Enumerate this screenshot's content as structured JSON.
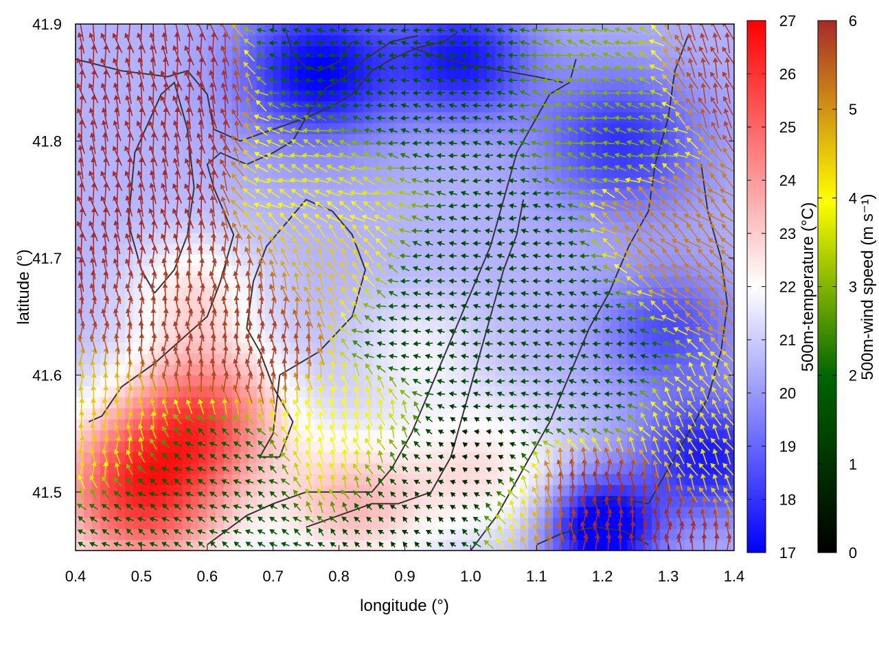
{
  "chart_data": {
    "type": "heatmap",
    "title": "",
    "xlabel": "longitude (°)",
    "ylabel": "latitude (°)",
    "xlim": [
      0.4,
      1.4
    ],
    "ylim": [
      41.45,
      41.9
    ],
    "x_ticks": [
      "0.4",
      "0.5",
      "0.6",
      "0.7",
      "0.8",
      "0.9",
      "1.0",
      "1.1",
      "1.2",
      "1.3",
      "1.4"
    ],
    "y_ticks": [
      "41.5",
      "41.6",
      "41.7",
      "41.8",
      "41.9"
    ],
    "grid": false,
    "legend": "none",
    "colorbars": [
      {
        "label": "500m-temperature (°C)",
        "range": [
          17,
          27
        ],
        "ticks": [
          "17",
          "18",
          "19",
          "20",
          "21",
          "22",
          "23",
          "24",
          "25",
          "26",
          "27"
        ],
        "colors": [
          "#0000ff",
          "#ffffff",
          "#ff0000"
        ]
      },
      {
        "label": "500m-wind speed (m s⁻¹)",
        "range": [
          0,
          6
        ],
        "ticks": [
          "0",
          "1",
          "2",
          "3",
          "4",
          "5",
          "6"
        ],
        "colors": [
          "#000000",
          "#006400",
          "#ffff00",
          "#a52a2a"
        ]
      }
    ],
    "temperature_blobs": [
      {
        "lon": 0.5,
        "lat": 41.5,
        "r": 0.14,
        "amp": 5.5
      },
      {
        "lon": 0.6,
        "lat": 41.57,
        "r": 0.12,
        "amp": 4.0
      },
      {
        "lon": 0.82,
        "lat": 41.49,
        "r": 0.12,
        "amp": 2.8
      },
      {
        "lon": 1.02,
        "lat": 41.52,
        "r": 0.12,
        "amp": 2.0
      },
      {
        "lon": 0.58,
        "lat": 41.67,
        "r": 0.1,
        "amp": 2.0
      },
      {
        "lon": 0.92,
        "lat": 41.62,
        "r": 0.1,
        "amp": 1.2
      },
      {
        "lon": 0.77,
        "lat": 41.86,
        "r": 0.12,
        "amp": -3.5
      },
      {
        "lon": 0.99,
        "lat": 41.87,
        "r": 0.1,
        "amp": -3.0
      },
      {
        "lon": 1.2,
        "lat": 41.47,
        "r": 0.08,
        "amp": -4.5
      },
      {
        "lon": 1.36,
        "lat": 41.53,
        "r": 0.1,
        "amp": -3.0
      },
      {
        "lon": 1.23,
        "lat": 41.8,
        "r": 0.12,
        "amp": -2.5
      },
      {
        "lon": 1.3,
        "lat": 41.64,
        "r": 0.1,
        "amp": -2.0
      }
    ],
    "wind_regions": [
      {
        "lon": 0.46,
        "lat": 41.79,
        "r": 0.1,
        "speed": 6.0,
        "dir_deg": 100
      },
      {
        "lon": 0.62,
        "lat": 41.64,
        "r": 0.09,
        "speed": 5.8,
        "dir_deg": 92
      },
      {
        "lon": 0.46,
        "lat": 41.56,
        "r": 0.06,
        "speed": 4.5,
        "dir_deg": 90
      },
      {
        "lon": 0.59,
        "lat": 41.51,
        "r": 0.08,
        "speed": 1.8,
        "dir_deg": 150
      },
      {
        "lon": 0.79,
        "lat": 41.7,
        "r": 0.07,
        "speed": 4.6,
        "dir_deg": 115
      },
      {
        "lon": 0.8,
        "lat": 41.76,
        "r": 0.08,
        "speed": 3.8,
        "dir_deg": 160
      },
      {
        "lon": 0.92,
        "lat": 41.84,
        "r": 0.1,
        "speed": 1.7,
        "dir_deg": 175
      },
      {
        "lon": 0.99,
        "lat": 41.66,
        "r": 0.1,
        "speed": 1.5,
        "dir_deg": 178
      },
      {
        "lon": 0.94,
        "lat": 41.5,
        "r": 0.08,
        "speed": 1.2,
        "dir_deg": 140
      },
      {
        "lon": 0.82,
        "lat": 41.55,
        "r": 0.07,
        "speed": 4.0,
        "dir_deg": 105
      },
      {
        "lon": 1.0,
        "lat": 41.52,
        "r": 0.06,
        "speed": 0.5,
        "dir_deg": 160
      },
      {
        "lon": 1.14,
        "lat": 41.62,
        "r": 0.1,
        "speed": 1.6,
        "dir_deg": 172
      },
      {
        "lon": 1.2,
        "lat": 41.84,
        "r": 0.08,
        "speed": 3.0,
        "dir_deg": 165
      },
      {
        "lon": 1.34,
        "lat": 41.7,
        "r": 0.08,
        "speed": 5.2,
        "dir_deg": 140
      },
      {
        "lon": 1.37,
        "lat": 41.86,
        "r": 0.06,
        "speed": 5.8,
        "dir_deg": 110
      },
      {
        "lon": 1.34,
        "lat": 41.56,
        "r": 0.06,
        "speed": 4.3,
        "dir_deg": 120
      },
      {
        "lon": 1.17,
        "lat": 41.48,
        "r": 0.08,
        "speed": 6.0,
        "dir_deg": 90
      },
      {
        "lon": 1.08,
        "lat": 41.48,
        "r": 0.05,
        "speed": 4.0,
        "dir_deg": 120
      }
    ],
    "contours": [
      [
        [
          0.4,
          41.87
        ],
        [
          0.47,
          41.86
        ],
        [
          0.54,
          41.855
        ],
        [
          0.57,
          41.86
        ],
        [
          0.6,
          41.84
        ],
        [
          0.61,
          41.81
        ],
        [
          0.65,
          41.8
        ],
        [
          0.7,
          41.81
        ],
        [
          0.75,
          41.82
        ],
        [
          0.79,
          41.83
        ],
        [
          0.82,
          41.84
        ],
        [
          0.85,
          41.86
        ],
        [
          0.88,
          41.87
        ],
        [
          0.92,
          41.88
        ],
        [
          0.96,
          41.885
        ],
        [
          0.98,
          41.893
        ]
      ],
      [
        [
          0.42,
          41.56
        ],
        [
          0.44,
          41.565
        ],
        [
          0.47,
          41.59
        ],
        [
          0.52,
          41.61
        ],
        [
          0.56,
          41.63
        ],
        [
          0.6,
          41.65
        ],
        [
          0.62,
          41.68
        ],
        [
          0.63,
          41.7
        ],
        [
          0.64,
          41.72
        ],
        [
          0.61,
          41.76
        ],
        [
          0.6,
          41.78
        ],
        [
          0.62,
          41.79
        ],
        [
          0.66,
          41.78
        ],
        [
          0.7,
          41.79
        ],
        [
          0.73,
          41.8
        ],
        [
          0.76,
          41.83
        ],
        [
          0.78,
          41.845
        ],
        [
          0.81,
          41.855
        ],
        [
          0.84,
          41.87
        ],
        [
          0.88,
          41.885
        ],
        [
          0.92,
          41.89
        ]
      ],
      [
        [
          0.52,
          41.67
        ],
        [
          0.55,
          41.69
        ],
        [
          0.57,
          41.72
        ],
        [
          0.58,
          41.76
        ],
        [
          0.57,
          41.81
        ],
        [
          0.55,
          41.85
        ],
        [
          0.53,
          41.84
        ],
        [
          0.49,
          41.79
        ],
        [
          0.48,
          41.73
        ],
        [
          0.5,
          41.69
        ],
        [
          0.52,
          41.67
        ]
      ],
      [
        [
          0.71,
          41.6
        ],
        [
          0.77,
          41.62
        ],
        [
          0.82,
          41.65
        ],
        [
          0.84,
          41.69
        ],
        [
          0.82,
          41.72
        ],
        [
          0.79,
          41.74
        ],
        [
          0.75,
          41.75
        ],
        [
          0.72,
          41.73
        ],
        [
          0.69,
          41.71
        ],
        [
          0.67,
          41.68
        ],
        [
          0.66,
          41.64
        ],
        [
          0.68,
          41.62
        ],
        [
          0.7,
          41.59
        ],
        [
          0.73,
          41.56
        ],
        [
          0.71,
          41.53
        ],
        [
          0.68,
          41.53
        ],
        [
          0.7,
          41.55
        ],
        [
          0.71,
          41.6
        ]
      ],
      [
        [
          0.82,
          41.885
        ],
        [
          0.8,
          41.868
        ],
        [
          0.77,
          41.86
        ],
        [
          0.75,
          41.863
        ],
        [
          0.73,
          41.875
        ],
        [
          0.72,
          41.893
        ]
      ],
      [
        [
          0.6,
          41.455
        ],
        [
          0.66,
          41.48
        ],
        [
          0.7,
          41.49
        ],
        [
          0.75,
          41.5
        ],
        [
          0.8,
          41.5
        ],
        [
          0.85,
          41.5
        ],
        [
          0.88,
          41.52
        ],
        [
          0.91,
          41.55
        ],
        [
          0.94,
          41.59
        ],
        [
          0.97,
          41.63
        ],
        [
          1.0,
          41.67
        ],
        [
          1.03,
          41.71
        ],
        [
          1.05,
          41.75
        ],
        [
          1.07,
          41.79
        ],
        [
          1.1,
          41.82
        ],
        [
          1.12,
          41.84
        ],
        [
          1.15,
          41.85
        ],
        [
          1.16,
          41.87
        ]
      ],
      [
        [
          0.75,
          41.47
        ],
        [
          0.8,
          41.48
        ],
        [
          0.85,
          41.49
        ],
        [
          0.89,
          41.49
        ],
        [
          0.94,
          41.5
        ],
        [
          0.97,
          41.53
        ],
        [
          0.99,
          41.57
        ],
        [
          1.01,
          41.61
        ],
        [
          1.03,
          41.65
        ],
        [
          1.05,
          41.69
        ],
        [
          1.07,
          41.72
        ],
        [
          1.08,
          41.75
        ]
      ],
      [
        [
          1.0,
          41.45
        ],
        [
          1.04,
          41.48
        ],
        [
          1.08,
          41.52
        ],
        [
          1.12,
          41.56
        ],
        [
          1.15,
          41.6
        ],
        [
          1.18,
          41.64
        ],
        [
          1.21,
          41.67
        ],
        [
          1.24,
          41.71
        ],
        [
          1.27,
          41.74
        ],
        [
          1.28,
          41.78
        ],
        [
          1.3,
          41.82
        ],
        [
          1.31,
          41.86
        ],
        [
          1.33,
          41.89
        ]
      ],
      [
        [
          1.1,
          41.455
        ],
        [
          1.14,
          41.465
        ],
        [
          1.19,
          41.47
        ],
        [
          1.23,
          41.467
        ],
        [
          1.27,
          41.455
        ]
      ],
      [
        [
          1.18,
          41.49
        ],
        [
          1.22,
          41.495
        ],
        [
          1.27,
          41.49
        ],
        [
          1.3,
          41.52
        ],
        [
          1.33,
          41.55
        ],
        [
          1.36,
          41.58
        ],
        [
          1.38,
          41.62
        ],
        [
          1.39,
          41.66
        ],
        [
          1.38,
          41.7
        ],
        [
          1.36,
          41.74
        ],
        [
          1.35,
          41.78
        ]
      ],
      [
        [
          0.91,
          41.88
        ],
        [
          0.96,
          41.87
        ],
        [
          1.0,
          41.865
        ],
        [
          1.05,
          41.86
        ],
        [
          1.1,
          41.855
        ],
        [
          1.14,
          41.85
        ]
      ]
    ]
  }
}
